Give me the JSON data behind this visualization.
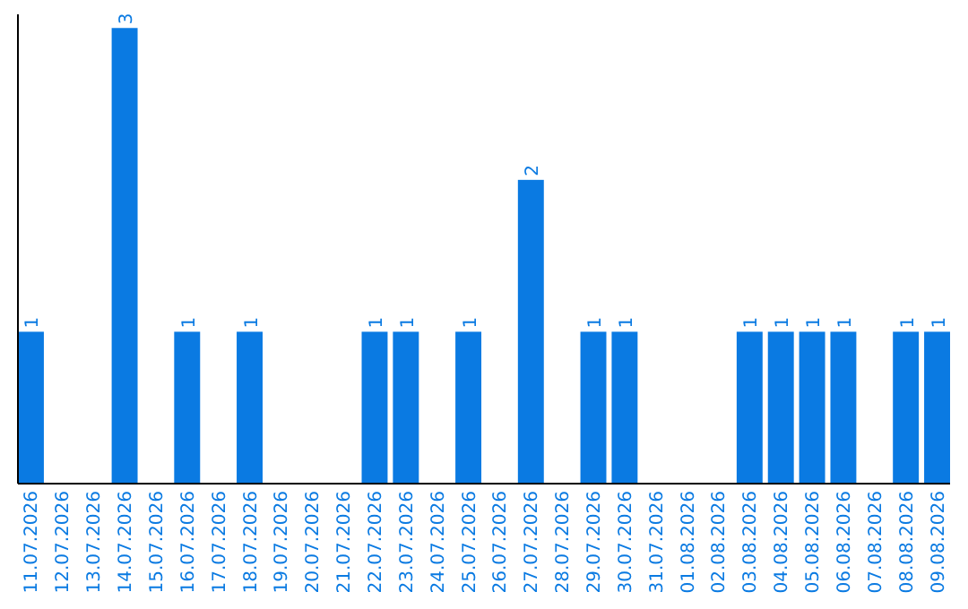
{
  "chart_data": {
    "type": "bar",
    "categories": [
      "11.07.2026",
      "12.07.2026",
      "13.07.2026",
      "14.07.2026",
      "15.07.2026",
      "16.07.2026",
      "17.07.2026",
      "18.07.2026",
      "19.07.2026",
      "20.07.2026",
      "21.07.2026",
      "22.07.2026",
      "23.07.2026",
      "24.07.2026",
      "25.07.2026",
      "26.07.2026",
      "27.07.2026",
      "28.07.2026",
      "29.07.2026",
      "30.07.2026",
      "31.07.2026",
      "01.08.2026",
      "02.08.2026",
      "03.08.2026",
      "04.08.2026",
      "05.08.2026",
      "06.08.2026",
      "07.08.2026",
      "08.08.2026",
      "09.08.2026"
    ],
    "values": [
      1,
      0,
      0,
      3,
      0,
      1,
      0,
      1,
      0,
      0,
      0,
      1,
      1,
      0,
      1,
      0,
      2,
      0,
      1,
      1,
      0,
      0,
      0,
      1,
      1,
      1,
      1,
      0,
      1,
      1
    ],
    "value_labels": [
      "1",
      null,
      null,
      "3",
      null,
      "1",
      null,
      "1",
      null,
      null,
      null,
      "1",
      "1",
      null,
      "1",
      null,
      "2",
      null,
      "1",
      "1",
      null,
      null,
      null,
      "1",
      "1",
      "1",
      "1",
      null,
      "1",
      "1"
    ],
    "color": "#0a7ae2"
  }
}
